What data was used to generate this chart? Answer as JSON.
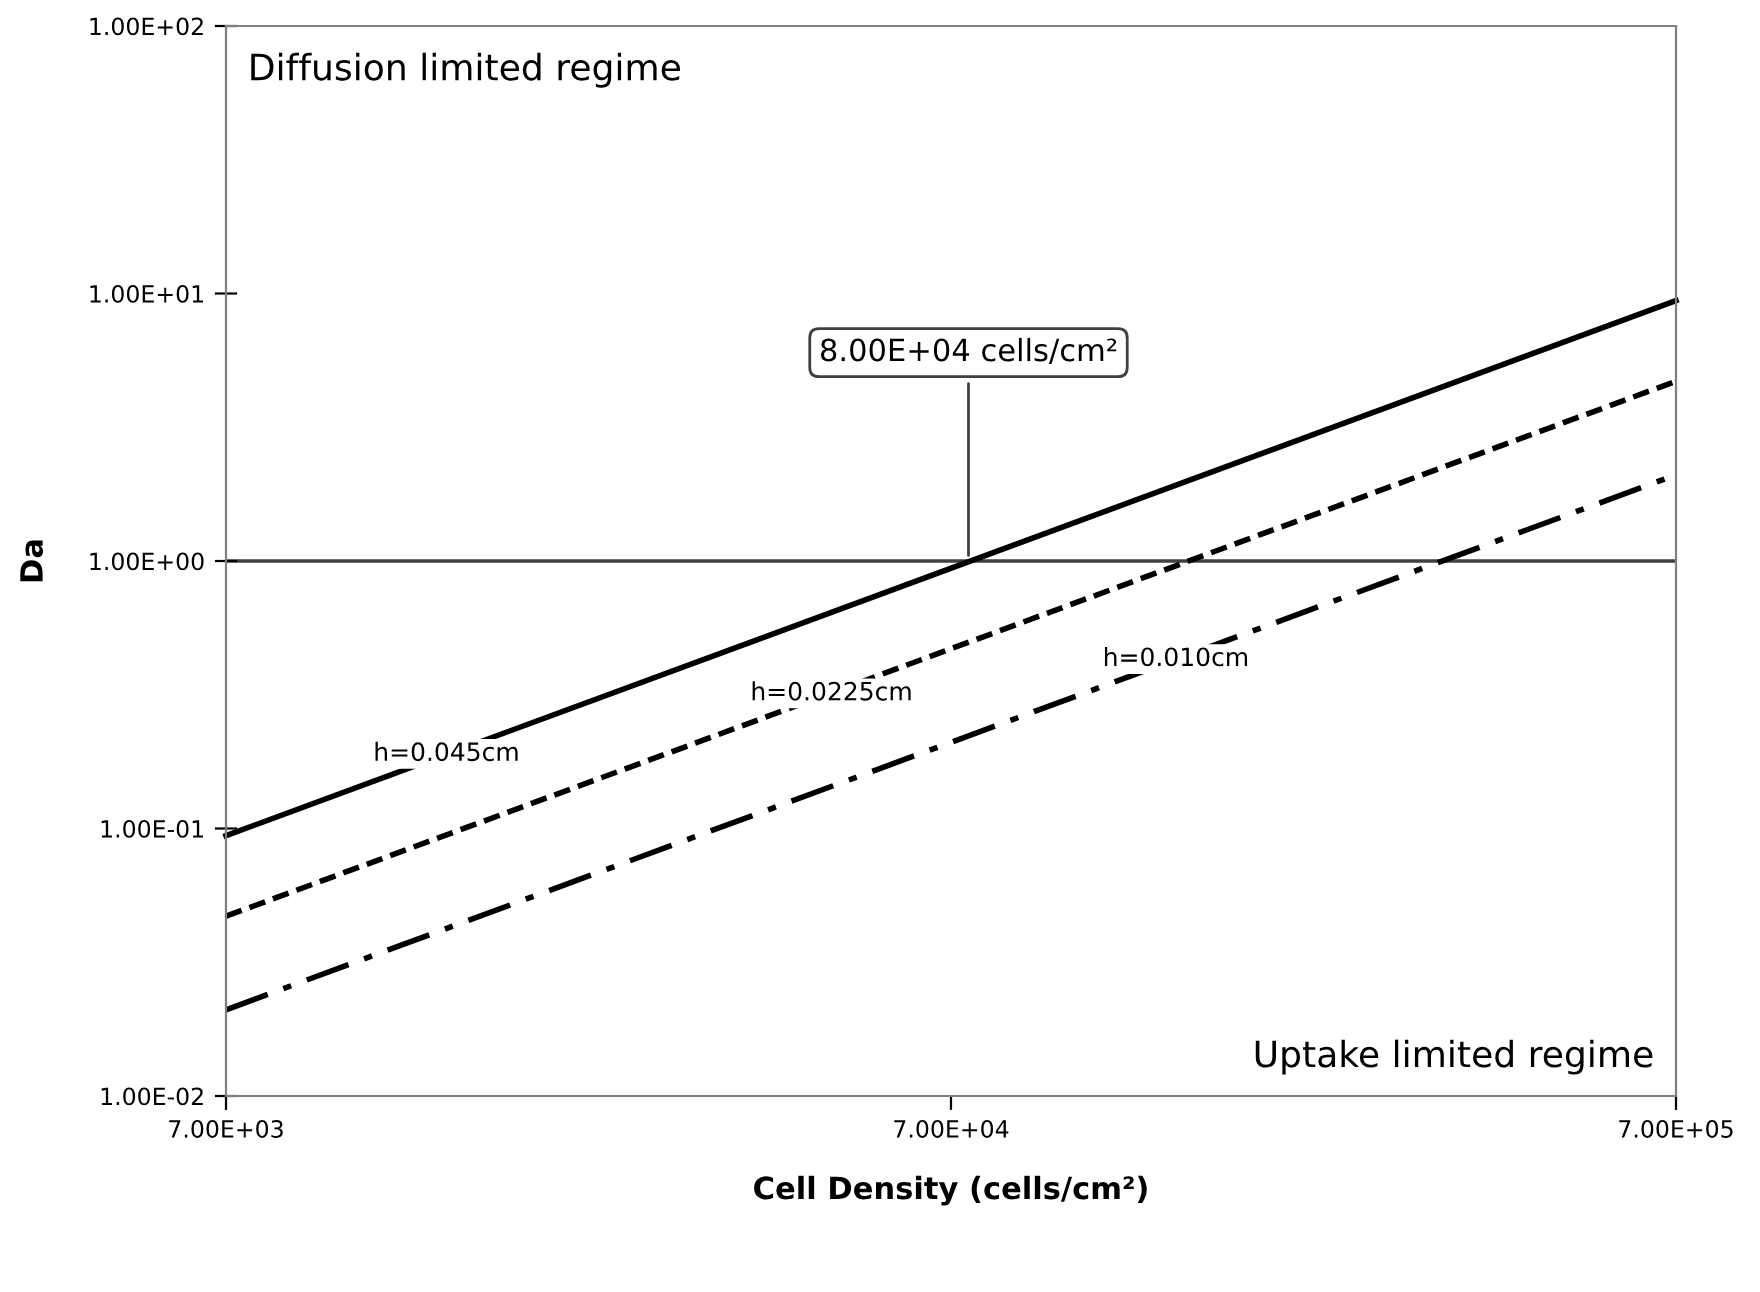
{
  "chart_data": {
    "type": "line",
    "xlabel": "Cell Density (cells/cm²)",
    "ylabel": "Da",
    "log": "xy",
    "xlim": [
      7000,
      700000
    ],
    "ylim": [
      0.01,
      100
    ],
    "xticks": [
      {
        "value": 7000,
        "label": "7.00E+03"
      },
      {
        "value": 70000,
        "label": "7.00E+04"
      },
      {
        "value": 700000,
        "label": "7.00E+05"
      }
    ],
    "yticks": [
      {
        "value": 0.01,
        "label": "1.00E-02"
      },
      {
        "value": 0.1,
        "label": "1.00E-01"
      },
      {
        "value": 1,
        "label": "1.00E+00"
      },
      {
        "value": 10,
        "label": "1.00E+01"
      },
      {
        "value": 100,
        "label": "1.00E+02"
      }
    ],
    "x": [
      7000,
      700000
    ],
    "series": [
      {
        "color": "#000000",
        "line_style": "solid",
        "values": [
          0.094,
          9.4
        ]
      },
      {
        "color": "#000000",
        "line_style": "dashed",
        "values": [
          0.047,
          4.7
        ]
      },
      {
        "color": "#000000",
        "line_style": "dashdot",
        "values": [
          0.021,
          2.1
        ]
      }
    ],
    "ref_lines": [
      {
        "axis": "y",
        "value": 1,
        "color": "#404040"
      }
    ],
    "annotations": [
      {
        "text": "8.00E+04 cells/cm²",
        "x": 74000,
        "y": 1
      },
      {
        "text": "h=0.045cm",
        "x": 14100,
        "y": 0.19
      },
      {
        "text": "h=0.0225cm",
        "x": 47900,
        "y": 0.32
      },
      {
        "text": "h=0.010cm",
        "x": 143000,
        "y": 0.43
      },
      "Diffusion limited regime",
      "Uptake limited regime"
    ],
    "grid": false,
    "legend": false
  }
}
